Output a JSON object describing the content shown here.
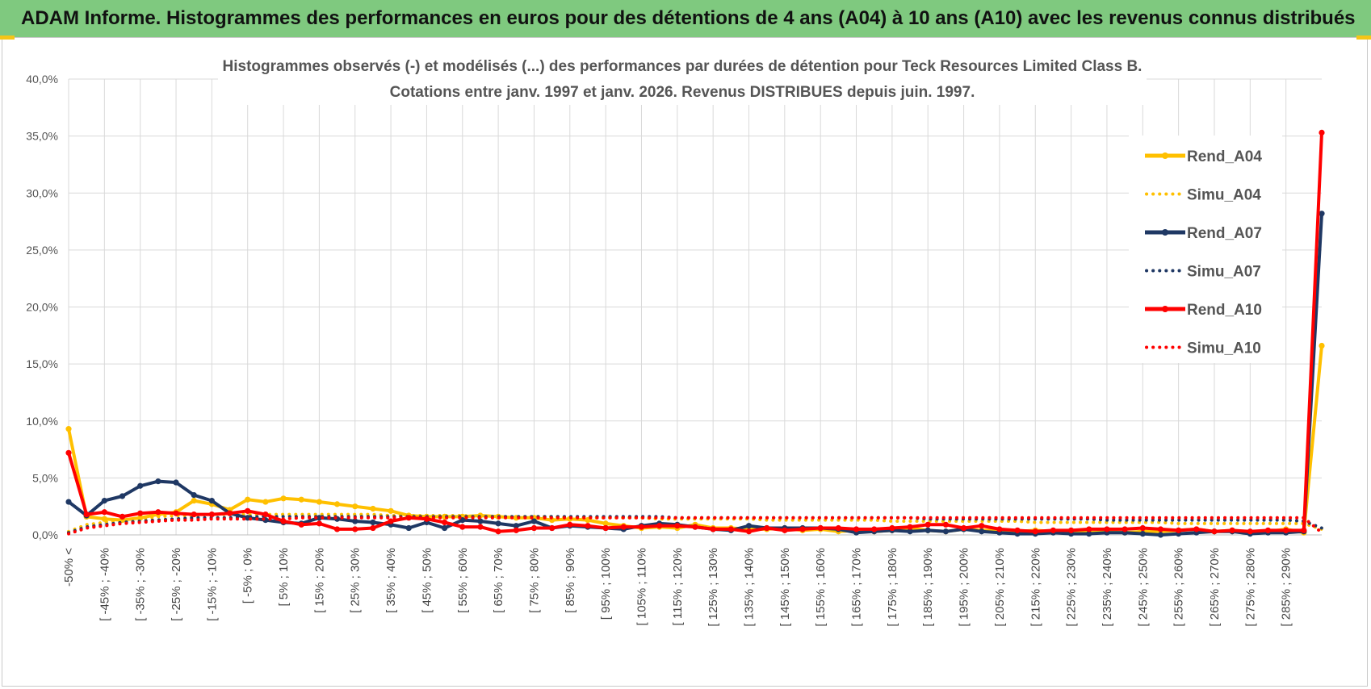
{
  "header": {
    "banner": "ADAM Informe. Histogrammes des performances en euros pour des détentions de 4 ans (A04) à 10 ans (A10) avec les revenus connus distribués"
  },
  "chart_data": {
    "type": "line",
    "title_line1": "Histogrammes observés (-) et modélisés (...) des performances par durées de détention pour Teck Resources Limited Class B.",
    "title_line2": "Cotations entre janv. 1997 et janv. 2026. Revenus DISTRIBUES depuis juin. 1997.",
    "ylim": [
      0,
      40
    ],
    "y_ticks": [
      "0,0%",
      "5,0%",
      "10,0%",
      "15,0%",
      "20,0%",
      "25,0%",
      "30,0%",
      "35,0%",
      "40,0%"
    ],
    "grid": true,
    "legend_position": "right",
    "x_tick_labels": [
      "-50% <",
      "[ -45% ; -40%",
      "[ -35% ; -30%",
      "[ -25% ; -20%",
      "[ -15% ; -10%",
      "[ -5% ; 0%",
      "[ 5% ; 10%",
      "[ 15% ; 20%",
      "[ 25% ; 30%",
      "[ 35% ; 40%",
      "[ 45% ; 50%",
      "[ 55% ; 60%",
      "[ 65% ; 70%",
      "[ 75% ; 80%",
      "[ 85% ; 90%",
      "[ 95% ; 100%",
      "[ 105% ; 110%",
      "[ 115% ; 120%",
      "[ 125% ; 130%",
      "[ 135% ; 140%",
      "[ 145% ; 150%",
      "[ 155% ; 160%",
      "[ 165% ; 170%",
      "[ 175% ; 180%",
      "[ 185% ; 190%",
      "[ 195% ; 200%",
      "[ 205% ; 210%",
      "[ 215% ; 220%",
      "[ 225% ; 230%",
      "[ 235% ; 240%",
      "[ 245% ; 250%",
      "[ 255% ; 260%",
      "[ 265% ; 270%",
      "[ 275% ; 280%",
      "[ 285% ; 290%"
    ],
    "series": [
      {
        "name": "Rend_A04",
        "style": "solid",
        "color": "#ffc000",
        "values": [
          9.3,
          1.6,
          1.4,
          1.3,
          1.5,
          1.8,
          2.0,
          3.0,
          2.7,
          2.2,
          3.1,
          2.9,
          3.2,
          3.1,
          2.9,
          2.7,
          2.5,
          2.3,
          2.1,
          1.7,
          1.6,
          1.6,
          1.6,
          1.7,
          1.6,
          1.5,
          1.5,
          1.3,
          1.4,
          1.3,
          1.0,
          0.8,
          0.6,
          0.7,
          0.6,
          0.9,
          0.6,
          0.6,
          0.5,
          0.5,
          0.6,
          0.4,
          0.5,
          0.3,
          0.4,
          0.3,
          0.4,
          0.6,
          0.4,
          0.3,
          0.5,
          0.4,
          0.4,
          0.3,
          0.4,
          0.3,
          0.3,
          0.2,
          0.3,
          0.2,
          0.3,
          0.3,
          0.4,
          0.5,
          0.3,
          0.4,
          0.2,
          0.3,
          0.5,
          0.2,
          16.6
        ]
      },
      {
        "name": "Simu_A04",
        "style": "dotted",
        "color": "#ffc000",
        "values": [
          0.3,
          0.9,
          1.1,
          1.3,
          1.4,
          1.6,
          1.7,
          1.7,
          1.8,
          1.8,
          1.8,
          1.8,
          1.8,
          1.8,
          1.8,
          1.8,
          1.8,
          1.8,
          1.7,
          1.7,
          1.7,
          1.7,
          1.7,
          1.6,
          1.6,
          1.6,
          1.6,
          1.6,
          1.5,
          1.5,
          1.5,
          1.5,
          1.5,
          1.4,
          1.4,
          1.4,
          1.4,
          1.4,
          1.4,
          1.3,
          1.3,
          1.3,
          1.3,
          1.3,
          1.3,
          1.3,
          1.2,
          1.2,
          1.2,
          1.2,
          1.2,
          1.2,
          1.2,
          1.2,
          1.1,
          1.1,
          1.1,
          1.1,
          1.1,
          1.1,
          1.1,
          1.1,
          1.0,
          1.0,
          1.0,
          1.0,
          1.0,
          1.0,
          1.0,
          1.0,
          0.5
        ]
      },
      {
        "name": "Rend_A07",
        "style": "solid",
        "color": "#1f3864",
        "values": [
          2.9,
          1.7,
          3.0,
          3.4,
          4.3,
          4.7,
          4.6,
          3.5,
          3.0,
          1.9,
          1.5,
          1.3,
          1.1,
          1.0,
          1.5,
          1.4,
          1.2,
          1.1,
          0.9,
          0.6,
          1.1,
          0.6,
          1.3,
          1.2,
          1.0,
          0.8,
          1.2,
          0.6,
          0.8,
          0.7,
          0.6,
          0.5,
          0.8,
          1.0,
          0.9,
          0.7,
          0.5,
          0.4,
          0.8,
          0.6,
          0.6,
          0.6,
          0.6,
          0.5,
          0.2,
          0.3,
          0.4,
          0.3,
          0.4,
          0.3,
          0.5,
          0.3,
          0.2,
          0.1,
          0.1,
          0.2,
          0.1,
          0.1,
          0.2,
          0.2,
          0.1,
          0.0,
          0.1,
          0.2,
          0.3,
          0.3,
          0.1,
          0.2,
          0.2,
          0.3,
          28.2
        ]
      },
      {
        "name": "Simu_A07",
        "style": "dotted",
        "color": "#1f3864",
        "values": [
          0.2,
          0.7,
          0.9,
          1.1,
          1.2,
          1.3,
          1.4,
          1.5,
          1.5,
          1.5,
          1.6,
          1.6,
          1.6,
          1.6,
          1.6,
          1.6,
          1.6,
          1.6,
          1.6,
          1.6,
          1.6,
          1.6,
          1.6,
          1.6,
          1.6,
          1.6,
          1.6,
          1.6,
          1.6,
          1.6,
          1.6,
          1.6,
          1.6,
          1.6,
          1.5,
          1.5,
          1.5,
          1.5,
          1.5,
          1.5,
          1.5,
          1.5,
          1.5,
          1.5,
          1.5,
          1.5,
          1.5,
          1.5,
          1.4,
          1.4,
          1.4,
          1.4,
          1.4,
          1.4,
          1.4,
          1.4,
          1.4,
          1.4,
          1.3,
          1.3,
          1.3,
          1.3,
          1.3,
          1.3,
          1.3,
          1.3,
          1.3,
          1.3,
          1.3,
          1.2,
          0.6
        ]
      },
      {
        "name": "Rend_A10",
        "style": "solid",
        "color": "#ff0000",
        "values": [
          7.2,
          1.8,
          2.0,
          1.6,
          1.9,
          2.0,
          1.9,
          1.8,
          1.8,
          1.9,
          2.1,
          1.8,
          1.2,
          0.9,
          1.0,
          0.5,
          0.5,
          0.6,
          1.2,
          1.5,
          1.4,
          1.1,
          0.7,
          0.7,
          0.3,
          0.4,
          0.6,
          0.6,
          0.9,
          0.8,
          0.6,
          0.7,
          0.7,
          0.8,
          0.8,
          0.7,
          0.5,
          0.5,
          0.3,
          0.6,
          0.4,
          0.5,
          0.6,
          0.6,
          0.5,
          0.5,
          0.6,
          0.7,
          0.9,
          0.9,
          0.6,
          0.8,
          0.5,
          0.4,
          0.3,
          0.4,
          0.4,
          0.5,
          0.5,
          0.5,
          0.6,
          0.5,
          0.4,
          0.5,
          0.3,
          0.4,
          0.3,
          0.4,
          0.4,
          0.4,
          35.3
        ]
      },
      {
        "name": "Simu_A10",
        "style": "dotted",
        "color": "#ff0000",
        "values": [
          0.1,
          0.6,
          0.8,
          1.0,
          1.1,
          1.2,
          1.3,
          1.3,
          1.4,
          1.4,
          1.4,
          1.4,
          1.4,
          1.5,
          1.5,
          1.5,
          1.5,
          1.5,
          1.5,
          1.5,
          1.5,
          1.5,
          1.5,
          1.5,
          1.5,
          1.5,
          1.5,
          1.5,
          1.5,
          1.5,
          1.5,
          1.5,
          1.5,
          1.5,
          1.5,
          1.5,
          1.5,
          1.5,
          1.5,
          1.5,
          1.5,
          1.5,
          1.5,
          1.5,
          1.5,
          1.5,
          1.5,
          1.5,
          1.5,
          1.5,
          1.5,
          1.5,
          1.5,
          1.5,
          1.5,
          1.5,
          1.5,
          1.5,
          1.5,
          1.5,
          1.5,
          1.5,
          1.5,
          1.5,
          1.5,
          1.5,
          1.5,
          1.5,
          1.5,
          1.5,
          0.2
        ]
      }
    ]
  }
}
